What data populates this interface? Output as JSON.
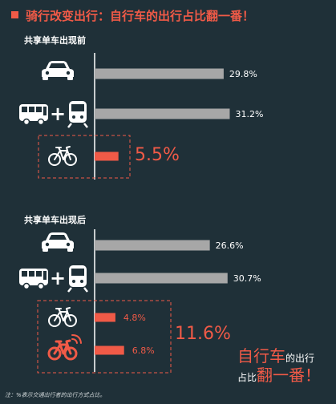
{
  "title": "骑行改变出行：自行车的出行占比翻一番！",
  "chart_data": [
    {
      "type": "bar",
      "section_label": "共享单车出现前",
      "series": [
        {
          "icon": "car-icon",
          "value": 29.8,
          "label": "29.8%",
          "color": "#a7a7a7"
        },
        {
          "icon": "bus-plus-train-icon",
          "value": 31.2,
          "label": "31.2%",
          "color": "#a7a7a7"
        },
        {
          "icon": "bicycle-icon",
          "value": 5.5,
          "label": "5.5%",
          "color": "#f05a47"
        }
      ]
    },
    {
      "type": "bar",
      "section_label": "共享单车出现后",
      "series": [
        {
          "icon": "car-icon",
          "value": 26.6,
          "label": "26.6%",
          "color": "#a7a7a7"
        },
        {
          "icon": "bus-plus-train-icon",
          "value": 30.7,
          "label": "30.7%",
          "color": "#a7a7a7"
        },
        {
          "icon": "bicycle-icon",
          "value": 4.8,
          "label": "4.8%",
          "color": "#f05a47"
        },
        {
          "icon": "shared-bike-icon",
          "value": 6.8,
          "label": "6.8%",
          "color": "#f05a47"
        }
      ],
      "group_total_label": "11.6%"
    }
  ],
  "slogan": {
    "line1_big": "自行车",
    "line1_small": "的出行",
    "line2_small": "占比",
    "line2_big": "翻一番！"
  },
  "footnote": "注：%表示交通出行者的出行方式占比。",
  "colors": {
    "background": "#1f3038",
    "accent": "#f05a47",
    "bar_gray": "#a7a7a7",
    "axis": "#ffffff"
  }
}
